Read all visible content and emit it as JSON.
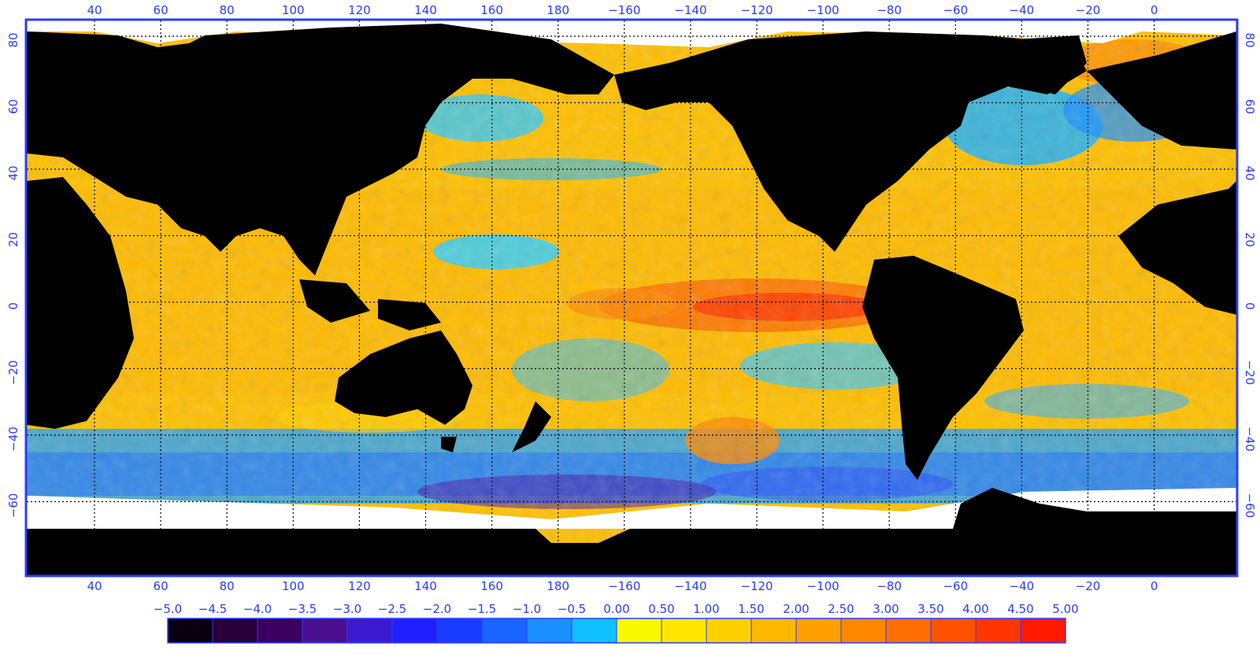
{
  "map": {
    "top_lon_labels": [
      "40",
      "60",
      "80",
      "100",
      "120",
      "140",
      "160",
      "180",
      "−160",
      "−140",
      "−120",
      "−100",
      "−80",
      "−60",
      "−40",
      "−20",
      "0"
    ],
    "bottom_lon_labels": [
      "40",
      "60",
      "80",
      "100",
      "120",
      "140",
      "160",
      "180",
      "−160",
      "−140",
      "−120",
      "−100",
      "−80",
      "−60",
      "−40",
      "−20",
      "0"
    ],
    "left_lat_labels": [
      "80",
      "60",
      "40",
      "20",
      "0",
      "−20",
      "−40",
      "−60"
    ],
    "right_lat_labels": [
      "80",
      "60",
      "40",
      "20",
      "0",
      "−20",
      "−40",
      "−60"
    ],
    "frame_color": "#2b3cff",
    "land_color": "#000000",
    "ice_color": "#ffffff"
  },
  "colorbar": {
    "tick_labels": [
      "−5.0",
      "−4.5",
      "−4.0",
      "−3.5",
      "−3.0",
      "−2.5",
      "−2.0",
      "−1.5",
      "−1.0",
      "−0.5",
      "0.00",
      "0.50",
      "1.00",
      "1.50",
      "2.00",
      "2.50",
      "3.00",
      "3.50",
      "4.00",
      "4.50",
      "5.00"
    ],
    "colors": [
      "#0a0010",
      "#2a0038",
      "#3b0060",
      "#4a1090",
      "#3a1ad0",
      "#2020ff",
      "#1a3cff",
      "#1a64ff",
      "#1a90ff",
      "#10c0ff",
      "#f8f800",
      "#ffe600",
      "#ffd000",
      "#ffb800",
      "#ffa000",
      "#ff8800",
      "#ff6e00",
      "#ff5200",
      "#ff3600",
      "#ff1a00"
    ],
    "label_color": "#2b3cff"
  }
}
